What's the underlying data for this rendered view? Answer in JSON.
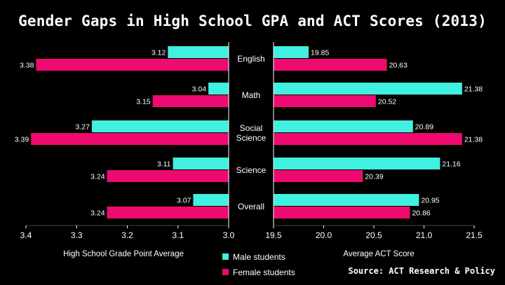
{
  "title": "Gender Gaps in High School GPA and ACT Scores (2013)",
  "source": "Source: ACT Research & Policy",
  "colors": {
    "male": "#40f0e0",
    "female": "#ee0a6e",
    "background": "#000000"
  },
  "chart_data": {
    "type": "bar",
    "categories": [
      "English",
      "Math",
      "Social\nScience",
      "Science",
      "Overall"
    ],
    "series_names": [
      "Male students",
      "Female students"
    ],
    "legend_position": "bottom-center",
    "panels": [
      {
        "type": "bar",
        "orientation": "horizontal",
        "xlabel": "High School Grade Point Average",
        "xlim": [
          3.4,
          3.0
        ],
        "xticks": [
          "3.4",
          "3.3",
          "3.2",
          "3.1",
          "3.0"
        ],
        "series": [
          {
            "name": "Male students",
            "values": [
              3.12,
              3.04,
              3.27,
              3.11,
              3.07
            ],
            "labels": [
              "3.12",
              "3.04",
              "3.27",
              "3.11",
              "3.07"
            ]
          },
          {
            "name": "Female students",
            "values": [
              3.38,
              3.15,
              3.39,
              3.24,
              3.24
            ],
            "labels": [
              "3.38",
              "3.15",
              "3.39",
              "3.24",
              "3.24"
            ]
          }
        ]
      },
      {
        "type": "bar",
        "orientation": "horizontal",
        "xlabel": "Average ACT Score",
        "xlim": [
          19.5,
          21.5
        ],
        "xticks": [
          "19.5",
          "20.0",
          "20.5",
          "21.0",
          "21.5"
        ],
        "series": [
          {
            "name": "Male students",
            "values": [
              19.85,
              21.38,
              20.89,
              21.16,
              20.95
            ],
            "labels": [
              "19.85",
              "21.38",
              "20.89",
              "21.16",
              "20.95"
            ]
          },
          {
            "name": "Female students",
            "values": [
              20.63,
              20.52,
              21.38,
              20.39,
              20.86
            ],
            "labels": [
              "20.63",
              "20.52",
              "21.38",
              "20.39",
              "20.86"
            ]
          }
        ]
      }
    ]
  }
}
